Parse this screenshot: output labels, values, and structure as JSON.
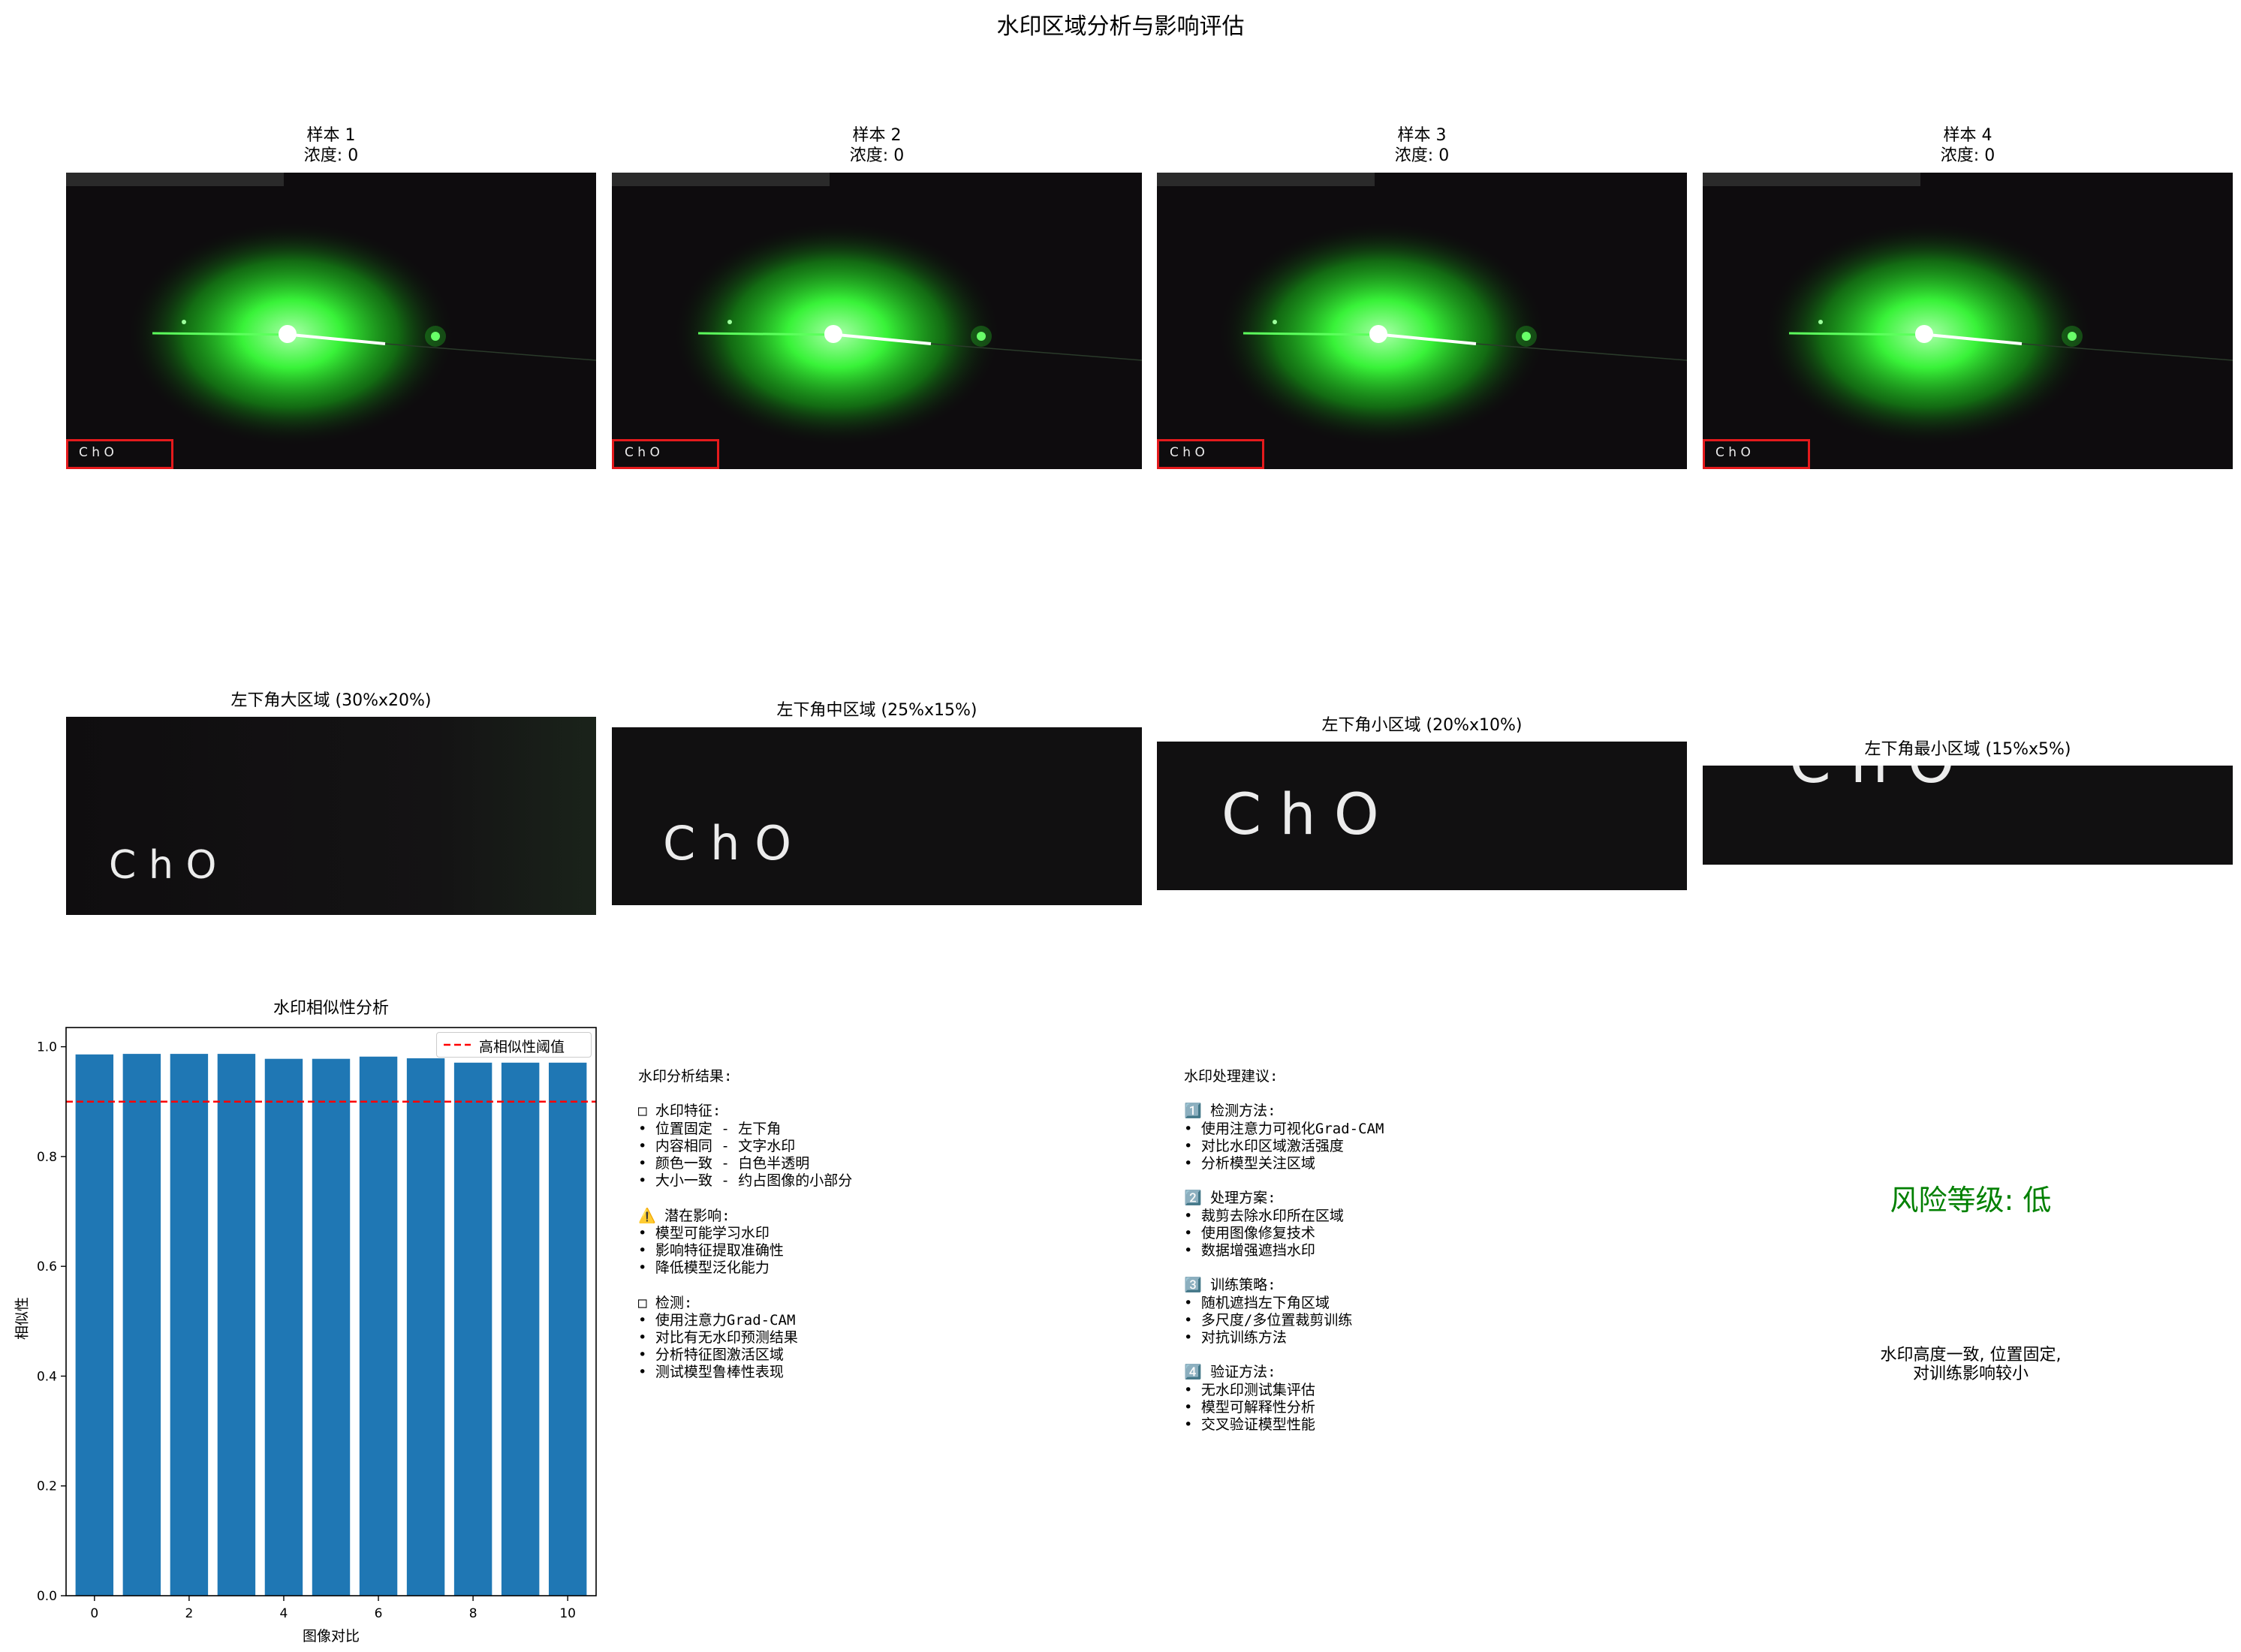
{
  "figure_title": "水印区域分析与影响评估",
  "samples": [
    {
      "title": "样本 1\n浓度: 0",
      "watermark": "ChO"
    },
    {
      "title": "样本 2\n浓度: 0",
      "watermark": "ChO"
    },
    {
      "title": "样本 3\n浓度: 0",
      "watermark": "ChO"
    },
    {
      "title": "样本 4\n浓度: 0",
      "watermark": "ChO"
    }
  ],
  "crops": [
    {
      "title": "左下角大区域 (30%x20%)",
      "watermark": "ChO"
    },
    {
      "title": "左下角中区域 (25%x15%)",
      "watermark": "ChO"
    },
    {
      "title": "左下角小区域 (20%x10%)",
      "watermark": "ChO"
    },
    {
      "title": "左下角最小区域 (15%x5%)",
      "watermark": "ChO"
    }
  ],
  "chart_data": {
    "type": "bar",
    "title": "水印相似性分析",
    "xlabel": "图像对比",
    "ylabel": "相似性",
    "x": [
      0,
      1,
      2,
      3,
      4,
      5,
      6,
      7,
      8,
      9,
      10
    ],
    "values": [
      0.986,
      0.987,
      0.987,
      0.987,
      0.978,
      0.978,
      0.982,
      0.979,
      0.971,
      0.971,
      0.971
    ],
    "bar_color": "#1f77b4",
    "threshold": {
      "value": 0.9,
      "label": "高相似性阈值",
      "color": "#ff0000",
      "style": "dashed"
    },
    "xlim": [
      -0.6,
      10.6
    ],
    "ylim": [
      0,
      1.035
    ],
    "xticks": [
      "0",
      "2",
      "4",
      "6",
      "8",
      "10"
    ],
    "yticks": [
      "0.0",
      "0.2",
      "0.4",
      "0.6",
      "0.8",
      "1.0"
    ],
    "legend_position": "top-right",
    "grid": false
  },
  "analysis_text": "水印分析结果:\n\n□ 水印特征:\n• 位置固定 - 左下角\n• 内容相同 - 文字水印\n• 颜色一致 - 白色半透明\n• 大小一致 - 约占图像的小部分\n\n⚠️ 潜在影响:\n• 模型可能学习水印\n• 影响特征提取准确性\n• 降低模型泛化能力\n\n□ 检测:\n• 使用注意力Grad-CAM\n• 对比有无水印预测结果\n• 分析特征图激活区域\n• 测试模型鲁棒性表现",
  "recommendation_text": "水印处理建议:\n\n1️⃣ 检测方法:\n• 使用注意力可视化Grad-CAM\n• 对比水印区域激活强度\n• 分析模型关注区域\n\n2️⃣ 处理方案:\n• 裁剪去除水印所在区域\n• 使用图像修复技术\n• 数据增强遮挡水印\n\n3️⃣ 训练策略:\n• 随机遮挡左下角区域\n• 多尺度/多位置裁剪训练\n• 对抗训练方法\n\n4️⃣ 验证方法:\n• 无水印测试集评估\n• 模型可解释性分析\n• 交叉验证模型性能",
  "risk": {
    "title": "风险等级: 低",
    "color": "#008000",
    "note": "水印高度一致, 位置固定,\n对训练影响较小"
  }
}
